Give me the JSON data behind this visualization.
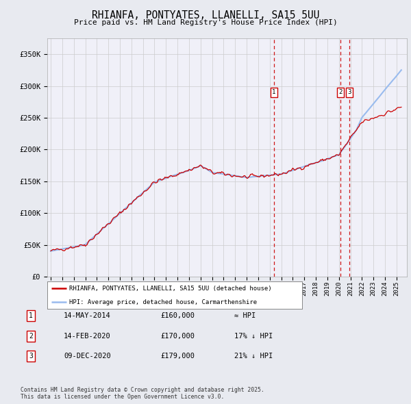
{
  "title": "RHIANFA, PONTYATES, LLANELLI, SA15 5UU",
  "subtitle": "Price paid vs. HM Land Registry's House Price Index (HPI)",
  "bg_color": "#e8eaf0",
  "plot_bg_color": "#f0f0f8",
  "grid_color": "#cccccc",
  "ylim": [
    0,
    375000
  ],
  "yticks": [
    0,
    50000,
    100000,
    150000,
    200000,
    250000,
    300000,
    350000
  ],
  "ytick_labels": [
    "£0",
    "£50K",
    "£100K",
    "£150K",
    "£200K",
    "£250K",
    "£300K",
    "£350K"
  ],
  "sale_dates_num": [
    2014.37,
    2020.12,
    2020.92
  ],
  "sale_prices": [
    160000,
    170000,
    179000
  ],
  "sale_labels": [
    "1",
    "2",
    "3"
  ],
  "sale_date_str": [
    "14-MAY-2014",
    "14-FEB-2020",
    "09-DEC-2020"
  ],
  "sale_vs_hpi": [
    "≈ HPI",
    "17% ↓ HPI",
    "21% ↓ HPI"
  ],
  "legend_house": "RHIANFA, PONTYATES, LLANELLI, SA15 5UU (detached house)",
  "legend_hpi": "HPI: Average price, detached house, Carmarthenshire",
  "footnote": "Contains HM Land Registry data © Crown copyright and database right 2025.\nThis data is licensed under the Open Government Licence v3.0.",
  "line_color_house": "#cc0000",
  "line_color_hpi": "#99bbee",
  "dashed_line_color": "#cc0000",
  "marker_box_color": "#cc0000",
  "xlim_left": 1994.7,
  "xlim_right": 2025.9
}
